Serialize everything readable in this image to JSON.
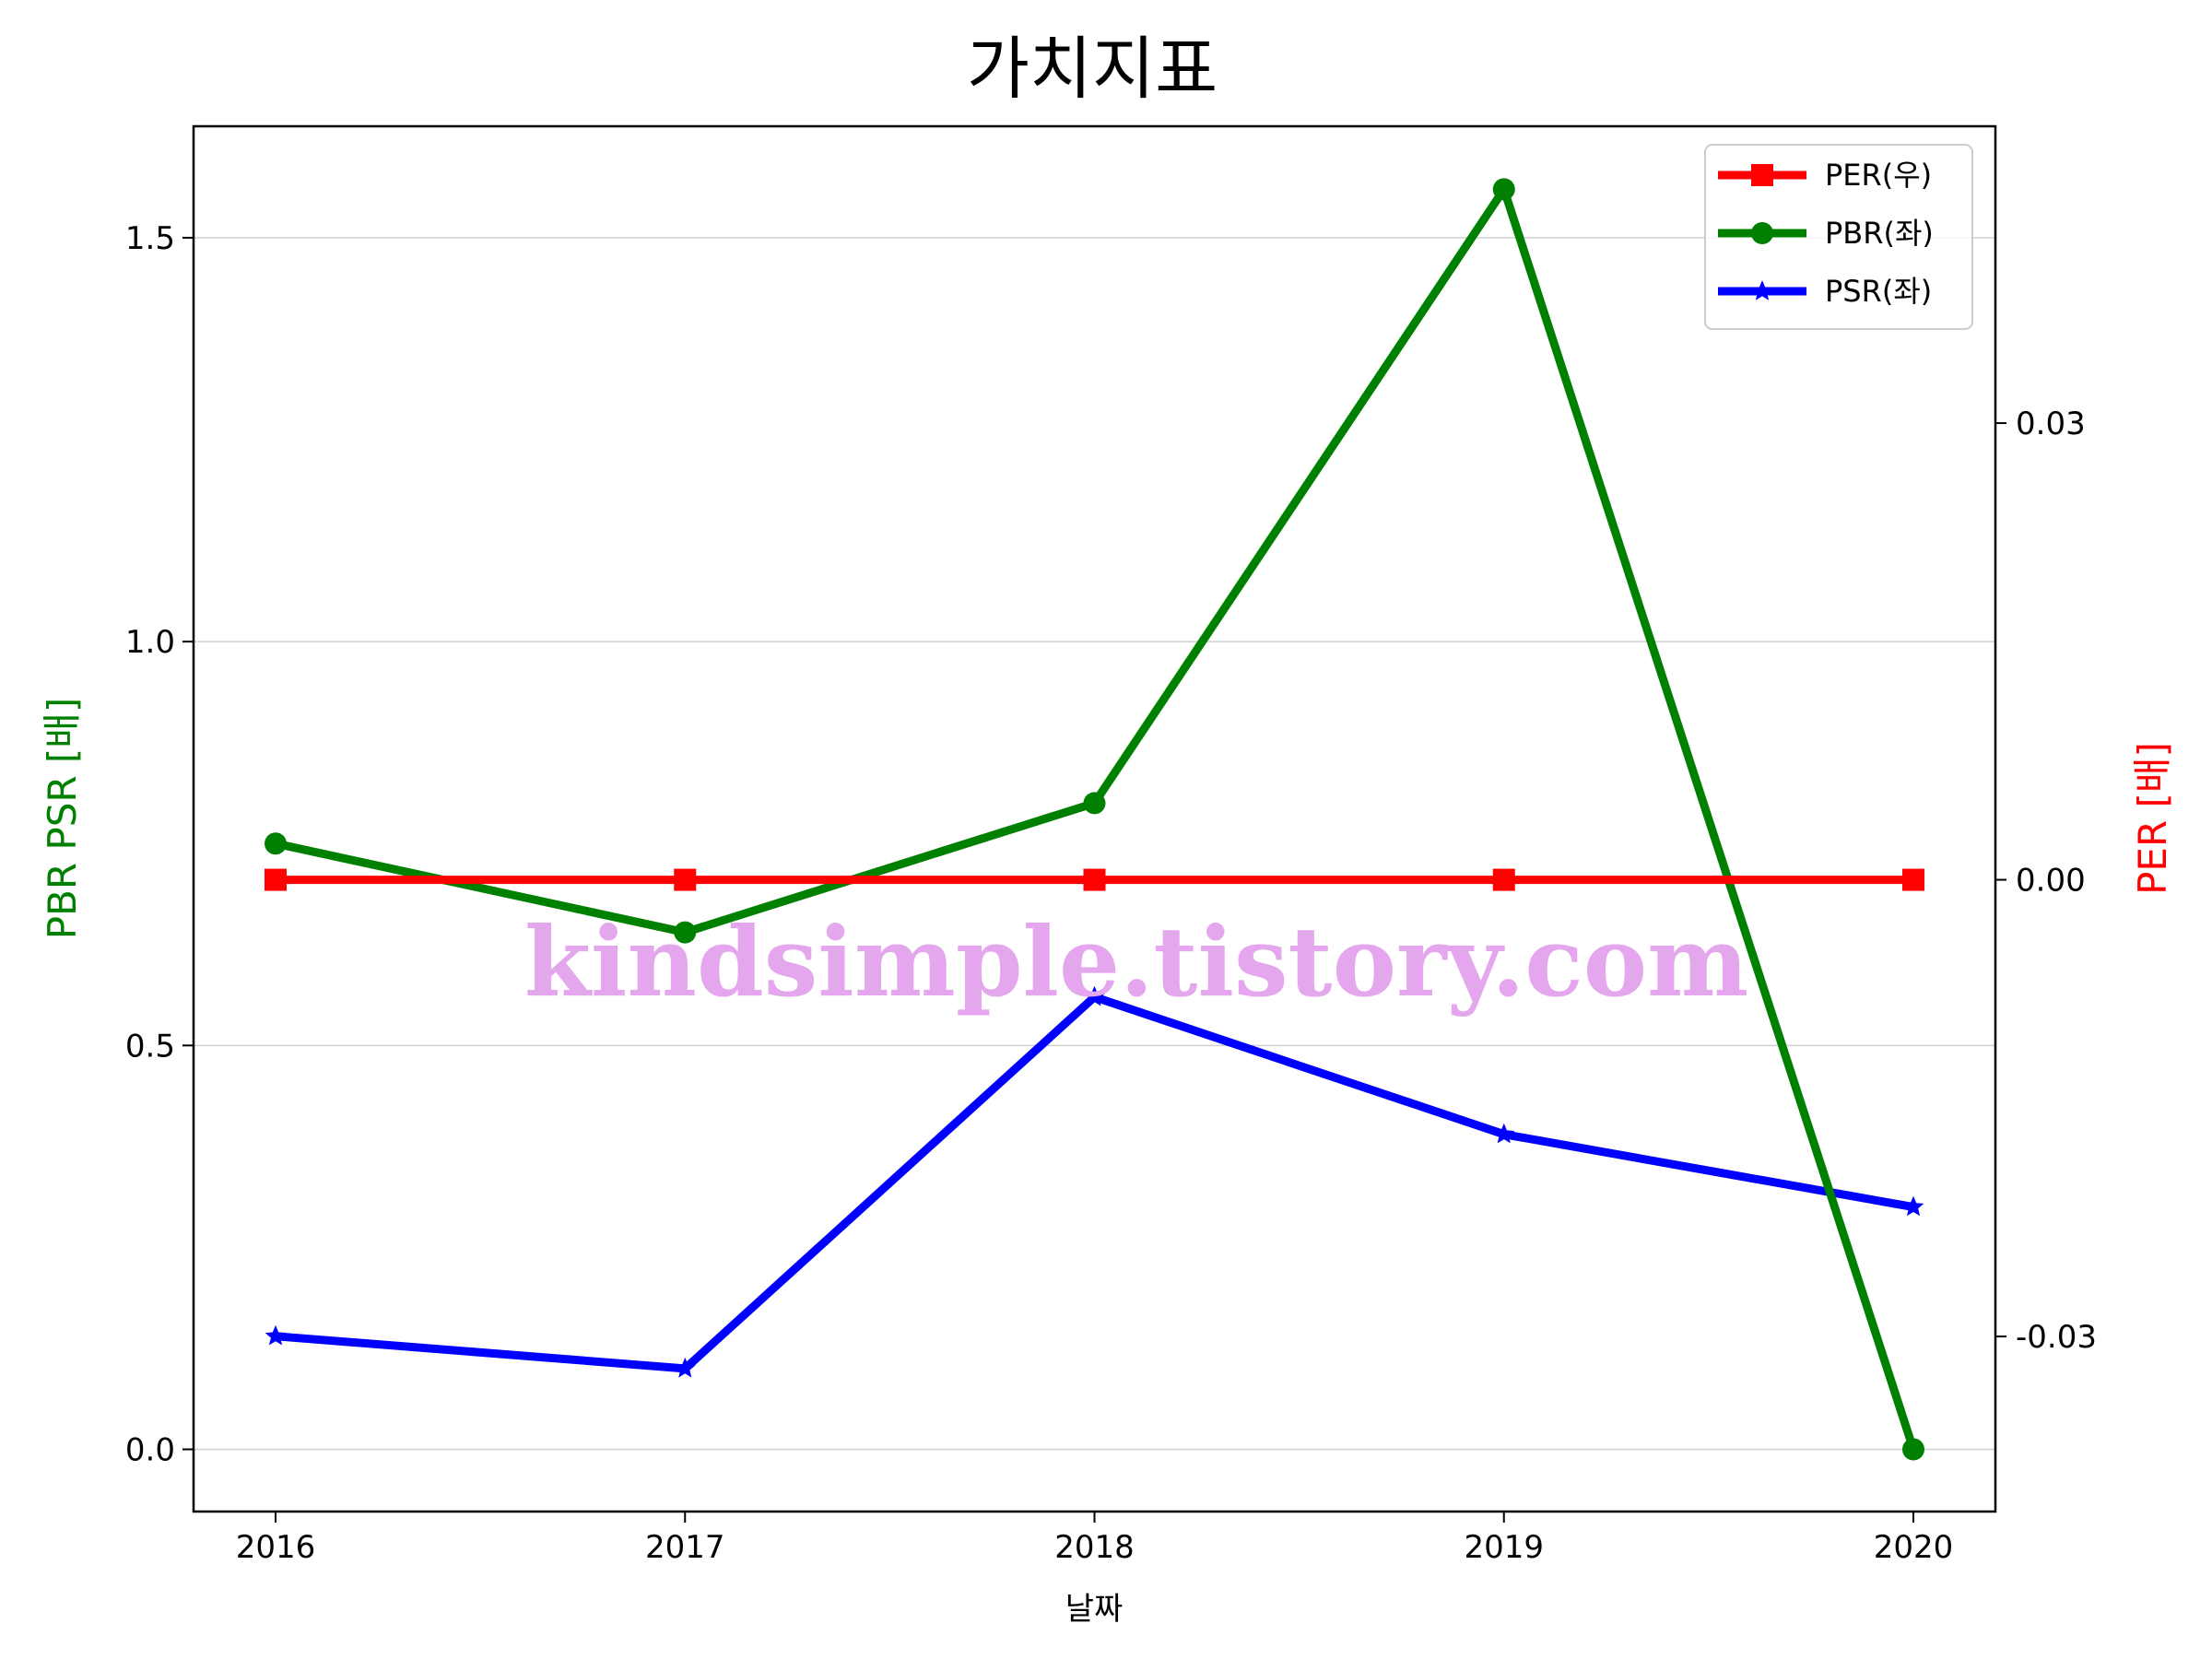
{
  "chart_data": {
    "type": "line",
    "title": "가치지표",
    "xlabel": "날짜",
    "ylabel_left": "PBR PSR [배]",
    "ylabel_right": "PER [배]",
    "categories": [
      "2016",
      "2017",
      "2018",
      "2019",
      "2020"
    ],
    "y_left": {
      "ylim": [
        -0.077,
        1.638
      ],
      "ticks": [
        "0.0",
        "0.5",
        "1.0",
        "1.5"
      ],
      "tick_values": [
        0.0,
        0.5,
        1.0,
        1.5
      ],
      "color": "#008000"
    },
    "y_right": {
      "ylim": [
        -0.0415,
        0.0495
      ],
      "ticks": [
        "-0.03",
        "0.00",
        "0.03"
      ],
      "tick_values": [
        -0.03,
        0.0,
        0.03
      ],
      "color": "#ff0000"
    },
    "series": [
      {
        "name": "PER(우)",
        "axis": "right",
        "color": "#ff0000",
        "marker": "square",
        "values": [
          0,
          0,
          0,
          0,
          0
        ]
      },
      {
        "name": "PBR(좌)",
        "axis": "left",
        "color": "#008000",
        "marker": "circle",
        "values": [
          0.75,
          0.64,
          0.8,
          1.56,
          0.0
        ]
      },
      {
        "name": "PSR(좌)",
        "axis": "left",
        "color": "#0000ff",
        "marker": "star",
        "values": [
          0.14,
          0.1,
          0.56,
          0.39,
          0.3
        ]
      }
    ],
    "grid": "horizontal",
    "legend": "top-right"
  },
  "watermark": {
    "text": "kindsimple.tistory.com",
    "color": "#e4a6ec"
  }
}
